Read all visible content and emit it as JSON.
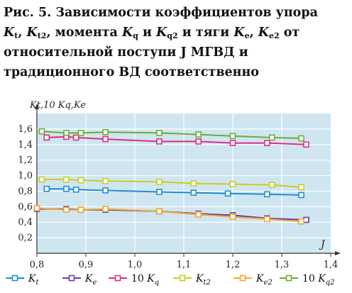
{
  "caption": {
    "prefix": "Рис. 5.",
    "line1_rest": " Зависимости коэффициентов упора",
    "k": "K",
    "sub_t": "t",
    "sub_t2": "t2",
    "sub_q": "q",
    "sub_q2": "q2",
    "sub_e": "e",
    "sub_e2": "e2",
    "comma": ", ",
    "moment": ", момента ",
    "and": " и ",
    "thrust": " и тяги ",
    "from": " от",
    "line3": "относительной поступи J МГВД и",
    "line4": "традиционного ВД соответственно"
  },
  "chart_data": {
    "type": "line",
    "ylabel": "Kt,10 Kq,Ke",
    "xlabel": "J",
    "xlim": [
      0.8,
      1.4
    ],
    "ylim": [
      0.0,
      1.8
    ],
    "x_ticks": [
      "0,8",
      "0,9",
      "1,0",
      "1,1",
      "1,2",
      "1,3",
      "1,4"
    ],
    "y_ticks": [
      "0,2",
      "0,4",
      "0,6",
      "0,8",
      "1,0",
      "1,2",
      "1,4",
      "1,6"
    ],
    "grid": true,
    "legend_position": "bottom",
    "series": [
      {
        "name": "Kt",
        "color": "#1f8fd0",
        "marker": "square",
        "x": [
          0.82,
          0.86,
          0.88,
          0.94,
          1.05,
          1.12,
          1.19,
          1.27,
          1.34
        ],
        "y": [
          0.83,
          0.83,
          0.82,
          0.81,
          0.79,
          0.78,
          0.77,
          0.76,
          0.75
        ]
      },
      {
        "name": "Ke",
        "color": "#6a3da1",
        "marker": "square",
        "x": [
          0.8,
          0.86,
          0.89,
          0.94,
          1.05,
          1.13,
          1.2,
          1.27,
          1.35
        ],
        "y": [
          0.57,
          0.57,
          0.56,
          0.56,
          0.54,
          0.51,
          0.49,
          0.45,
          0.43
        ]
      },
      {
        "name": "10 Kq",
        "color": "#e0307a",
        "marker": "square",
        "x": [
          0.82,
          0.86,
          0.88,
          0.94,
          1.05,
          1.13,
          1.2,
          1.27,
          1.35
        ],
        "y": [
          1.49,
          1.5,
          1.49,
          1.47,
          1.44,
          1.44,
          1.42,
          1.42,
          1.4
        ]
      },
      {
        "name": "Kt2",
        "color": "#c8cf1f",
        "marker": "square",
        "x": [
          0.81,
          0.86,
          0.89,
          0.94,
          1.05,
          1.12,
          1.2,
          1.28,
          1.34
        ],
        "y": [
          0.95,
          0.95,
          0.94,
          0.93,
          0.92,
          0.9,
          0.89,
          0.88,
          0.85
        ]
      },
      {
        "name": "Ke2",
        "color": "#f2a82c",
        "marker": "square",
        "x": [
          0.8,
          0.86,
          0.89,
          0.94,
          1.05,
          1.13,
          1.2,
          1.27,
          1.34
        ],
        "y": [
          0.58,
          0.56,
          0.56,
          0.57,
          0.54,
          0.5,
          0.47,
          0.44,
          0.41
        ]
      },
      {
        "name": "10 Kq2",
        "color": "#6aae35",
        "marker": "square",
        "x": [
          0.81,
          0.86,
          0.89,
          0.94,
          1.05,
          1.13,
          1.2,
          1.28,
          1.34
        ],
        "y": [
          1.57,
          1.55,
          1.55,
          1.56,
          1.55,
          1.53,
          1.51,
          1.49,
          1.48
        ]
      }
    ],
    "legend": [
      {
        "label": "K",
        "sub": "t",
        "prefix": ""
      },
      {
        "label": "K",
        "sub": "e",
        "prefix": ""
      },
      {
        "label": "K",
        "sub": "q",
        "prefix": "10 "
      },
      {
        "label": "K",
        "sub": "t2",
        "prefix": ""
      },
      {
        "label": "K",
        "sub": "e2",
        "prefix": ""
      },
      {
        "label": "K",
        "sub": "q2",
        "prefix": "10 "
      }
    ]
  },
  "style": {
    "plot_background": "#cfe6f1",
    "grid_color": "#ffffff",
    "axis_color": "#333333"
  }
}
